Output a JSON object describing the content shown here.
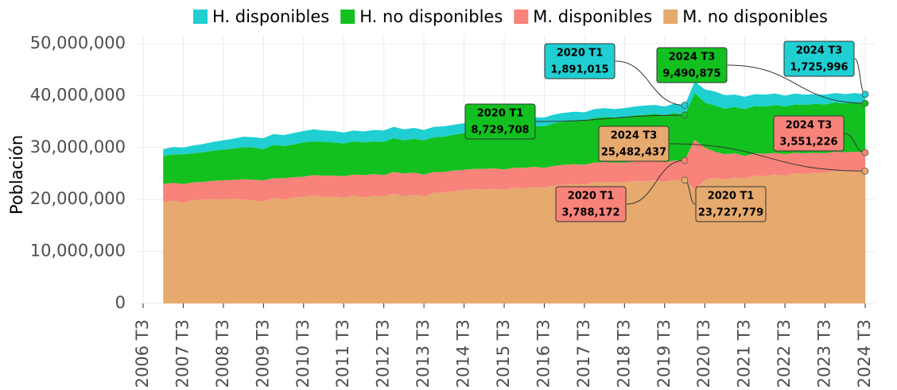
{
  "chart_data": {
    "type": "stacked_area",
    "ylabel": "Población",
    "legend": "top",
    "grid": true,
    "x": [
      "2007 T1",
      "2007 T2",
      "2007 T3",
      "2007 T4",
      "2008 T1",
      "2008 T2",
      "2008 T3",
      "2008 T4",
      "2009 T1",
      "2009 T2",
      "2009 T3",
      "2009 T4",
      "2010 T1",
      "2010 T2",
      "2010 T3",
      "2010 T4",
      "2011 T1",
      "2011 T2",
      "2011 T3",
      "2011 T4",
      "2012 T1",
      "2012 T2",
      "2012 T3",
      "2012 T4",
      "2013 T1",
      "2013 T2",
      "2013 T3",
      "2013 T4",
      "2014 T1",
      "2014 T2",
      "2014 T3",
      "2014 T4",
      "2015 T1",
      "2015 T2",
      "2015 T3",
      "2015 T4",
      "2016 T1",
      "2016 T2",
      "2016 T3",
      "2016 T4",
      "2017 T1",
      "2017 T2",
      "2017 T3",
      "2017 T4",
      "2018 T1",
      "2018 T2",
      "2018 T3",
      "2018 T4",
      "2019 T1",
      "2019 T2",
      "2019 T3",
      "2019 T4",
      "2020 T1",
      "2020 T2",
      "2020 T3",
      "2020 T4",
      "2021 T1",
      "2021 T2",
      "2021 T3",
      "2021 T4",
      "2022 T1",
      "2022 T2",
      "2022 T3",
      "2022 T4",
      "2023 T1",
      "2023 T2",
      "2023 T3",
      "2023 T4",
      "2024 T1",
      "2024 T2",
      "2024 T3"
    ],
    "xticks": [
      "2006 T3",
      "2007 T3",
      "2008 T3",
      "2009 T3",
      "2010 T3",
      "2011 T3",
      "2012 T3",
      "2013 T3",
      "2014 T3",
      "2015 T3",
      "2016 T3",
      "2017 T3",
      "2018 T3",
      "2019 T3",
      "2020 T3",
      "2021 T3",
      "2022 T3",
      "2023 T3",
      "2024 T3"
    ],
    "ylim": [
      0,
      50000000
    ],
    "yticks": [
      {
        "value": 0,
        "label": "0"
      },
      {
        "value": 10000000,
        "label": "10,000,000"
      },
      {
        "value": 20000000,
        "label": "20,000,000"
      },
      {
        "value": 30000000,
        "label": "30,000,000"
      },
      {
        "value": 40000000,
        "label": "40,000,000"
      },
      {
        "value": 50000000,
        "label": "50,000,000"
      }
    ],
    "series": [
      {
        "name": "H. disponibles",
        "color": "#1fcfd2",
        "values": [
          1300000,
          1400000,
          1300000,
          1500000,
          1600000,
          1700000,
          1800000,
          1900000,
          2000000,
          2000000,
          2100000,
          2100000,
          2100000,
          2200000,
          2200000,
          2300000,
          2200000,
          2200000,
          2100000,
          2100000,
          2100000,
          2200000,
          2200000,
          2200000,
          2100000,
          2100000,
          2000000,
          2000000,
          2000000,
          1900000,
          1900000,
          1900000,
          1900000,
          1800000,
          1800000,
          1800000,
          1800000,
          1700000,
          1700000,
          1700000,
          1700000,
          1700000,
          1600000,
          1700000,
          1700000,
          1600000,
          1700000,
          1700000,
          1800000,
          1700000,
          1700000,
          1800000,
          1891015,
          2200000,
          2500000,
          2700000,
          2600000,
          2400000,
          2400000,
          2300000,
          2300000,
          2200000,
          2100000,
          2100000,
          2000000,
          1900000,
          1900000,
          1800000,
          1800000,
          1800000,
          1725996
        ],
        "value_labels": [
          null,
          null,
          null,
          null,
          null,
          null,
          null,
          null,
          null,
          null,
          null,
          null,
          null,
          null,
          null,
          null,
          null,
          null,
          null,
          null,
          null,
          null,
          null,
          null,
          null,
          null,
          null,
          null,
          null,
          null,
          null,
          null,
          null,
          null,
          null,
          null,
          null,
          null,
          null,
          null,
          null,
          null,
          null,
          null,
          null,
          null,
          null,
          null,
          null,
          null,
          null,
          null,
          "1,891,015",
          null,
          null,
          null,
          null,
          null,
          null,
          null,
          null,
          null,
          null,
          null,
          null,
          null,
          null,
          null,
          null,
          null,
          "1,725,996"
        ]
      },
      {
        "name": "H. no disponibles",
        "color": "#12c11f",
        "values": [
          5400000,
          5500000,
          5700000,
          5600000,
          5700000,
          5800000,
          5900000,
          6000000,
          6200000,
          6200000,
          6000000,
          6400000,
          6200000,
          6300000,
          6600000,
          6500000,
          6500000,
          6400000,
          6300000,
          6400000,
          6300000,
          6300000,
          6400000,
          6500000,
          6400000,
          6500000,
          6600000,
          6700000,
          6800000,
          6900000,
          7100000,
          7200000,
          7300000,
          7400000,
          7500000,
          7600000,
          7700000,
          7800000,
          8000000,
          8200000,
          8300000,
          8400000,
          8500000,
          8600000,
          8700000,
          8700000,
          8800000,
          8900000,
          9000000,
          9100000,
          9000000,
          9200000,
          8729708,
          9000000,
          8700000,
          8900000,
          8800000,
          8900000,
          9000000,
          9100000,
          9100000,
          9200000,
          9200000,
          9300000,
          9300000,
          9400000,
          9400000,
          9500000,
          9400000,
          9500000,
          9490875
        ],
        "value_labels": [
          null,
          null,
          null,
          null,
          null,
          null,
          null,
          null,
          null,
          null,
          null,
          null,
          null,
          null,
          null,
          null,
          null,
          null,
          null,
          null,
          null,
          null,
          null,
          null,
          null,
          null,
          null,
          null,
          null,
          null,
          null,
          null,
          null,
          null,
          null,
          null,
          null,
          null,
          null,
          null,
          null,
          null,
          null,
          null,
          null,
          null,
          null,
          null,
          null,
          null,
          null,
          null,
          "8,729,708",
          null,
          null,
          null,
          null,
          null,
          null,
          null,
          null,
          null,
          null,
          null,
          null,
          null,
          null,
          null,
          null,
          null,
          "9,490,875"
        ]
      },
      {
        "name": "M. disponibles",
        "color": "#f8837a",
        "values": [
          3500000,
          3400000,
          3600000,
          3400000,
          3400000,
          3500000,
          3700000,
          3600000,
          3900000,
          4000000,
          4100000,
          3800000,
          4100000,
          3900000,
          3900000,
          3900000,
          4100000,
          4000000,
          4200000,
          4000000,
          4300000,
          4200000,
          4100000,
          4200000,
          4400000,
          4300000,
          4200000,
          4000000,
          3900000,
          4000000,
          3900000,
          3900000,
          4000000,
          3900000,
          3900000,
          3800000,
          4000000,
          3900000,
          3800000,
          3800000,
          3900000,
          3800000,
          3800000,
          3800000,
          3900000,
          3700000,
          3800000,
          3700000,
          3800000,
          3700000,
          3800000,
          3700000,
          3788172,
          9500000,
          6200000,
          5000000,
          4800000,
          4600000,
          4400000,
          4300000,
          4300000,
          4200000,
          4100000,
          4000000,
          4000000,
          3800000,
          3800000,
          3600000,
          3700000,
          3600000,
          3551226
        ],
        "value_labels": [
          null,
          null,
          null,
          null,
          null,
          null,
          null,
          null,
          null,
          null,
          null,
          null,
          null,
          null,
          null,
          null,
          null,
          null,
          null,
          null,
          null,
          null,
          null,
          null,
          null,
          null,
          null,
          null,
          null,
          null,
          null,
          null,
          null,
          null,
          null,
          null,
          null,
          null,
          null,
          null,
          null,
          null,
          null,
          null,
          null,
          null,
          null,
          null,
          null,
          null,
          null,
          null,
          "3,788,172",
          null,
          null,
          null,
          null,
          null,
          null,
          null,
          null,
          null,
          null,
          null,
          null,
          null,
          null,
          null,
          null,
          null,
          "3,551,226"
        ]
      },
      {
        "name": "M. no disponibles",
        "color": "#e6a96e",
        "values": [
          19500000,
          19800000,
          19400000,
          19900000,
          20000000,
          20100000,
          20000000,
          20200000,
          20000000,
          19800000,
          19600000,
          20300000,
          20000000,
          20400000,
          20500000,
          20800000,
          20500000,
          20600000,
          20300000,
          20800000,
          20400000,
          20700000,
          20600000,
          21100000,
          20600000,
          20900000,
          20600000,
          21300000,
          21400000,
          21600000,
          21800000,
          22000000,
          21900000,
          22100000,
          21900000,
          22300000,
          22100000,
          22400000,
          22300000,
          22700000,
          22800000,
          23000000,
          22900000,
          23300000,
          23300000,
          23400000,
          23300000,
          23600000,
          23500000,
          23700000,
          23400000,
          23800000,
          23727779,
          22000000,
          23800000,
          24200000,
          23900000,
          24300000,
          24000000,
          24600000,
          24500000,
          24800000,
          24600000,
          25000000,
          24900000,
          25200000,
          25100000,
          25600000,
          25400000,
          25600000,
          25482437
        ],
        "value_labels": [
          null,
          null,
          null,
          null,
          null,
          null,
          null,
          null,
          null,
          null,
          null,
          null,
          null,
          null,
          null,
          null,
          null,
          null,
          null,
          null,
          null,
          null,
          null,
          null,
          null,
          null,
          null,
          null,
          null,
          null,
          null,
          null,
          null,
          null,
          null,
          null,
          null,
          null,
          null,
          null,
          null,
          null,
          null,
          null,
          null,
          null,
          null,
          null,
          null,
          null,
          null,
          null,
          "23,727,779",
          null,
          null,
          null,
          null,
          null,
          null,
          null,
          null,
          null,
          null,
          null,
          null,
          null,
          null,
          null,
          null,
          null,
          "25,482,437"
        ]
      }
    ]
  }
}
